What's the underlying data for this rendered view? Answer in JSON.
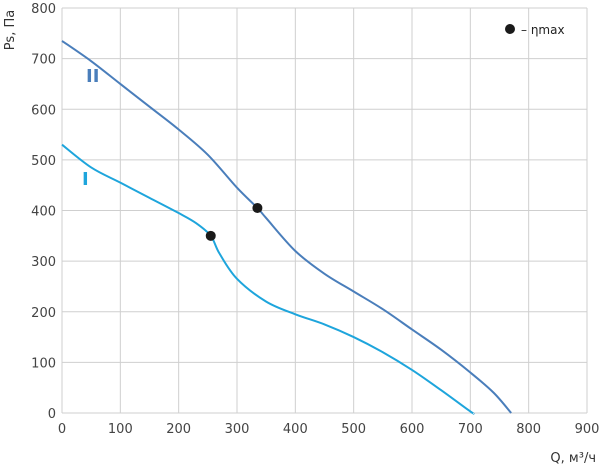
{
  "chart_data": {
    "type": "line",
    "xlabel": "Q, м³/ч",
    "ylabel": "Ps, Па",
    "xlim": [
      0,
      900
    ],
    "ylim": [
      0,
      800
    ],
    "x_ticks": [
      0,
      100,
      200,
      300,
      400,
      500,
      600,
      700,
      800,
      900
    ],
    "y_ticks": [
      0,
      100,
      200,
      300,
      400,
      500,
      600,
      700,
      800
    ],
    "grid": true,
    "legend": {
      "marker_label": "– ηmax",
      "placement": "top-right"
    },
    "series": [
      {
        "name": "II",
        "color": "#4a7ebb",
        "x": [
          0,
          50,
          100,
          150,
          200,
          250,
          300,
          335,
          350,
          400,
          450,
          500,
          550,
          600,
          650,
          700,
          740,
          770
        ],
        "y": [
          735,
          695,
          650,
          605,
          560,
          510,
          445,
          405,
          385,
          320,
          275,
          240,
          205,
          165,
          125,
          80,
          40,
          0
        ],
        "max_efficiency_point": {
          "x": 335,
          "y": 405
        }
      },
      {
        "name": "I",
        "color": "#1ea5dc",
        "x": [
          0,
          50,
          100,
          150,
          200,
          230,
          255,
          270,
          300,
          350,
          400,
          450,
          500,
          550,
          600,
          650,
          700,
          705
        ],
        "y": [
          530,
          485,
          455,
          425,
          395,
          375,
          350,
          315,
          265,
          220,
          195,
          175,
          150,
          120,
          85,
          45,
          3,
          0
        ],
        "max_efficiency_point": {
          "x": 255,
          "y": 350
        }
      }
    ]
  }
}
